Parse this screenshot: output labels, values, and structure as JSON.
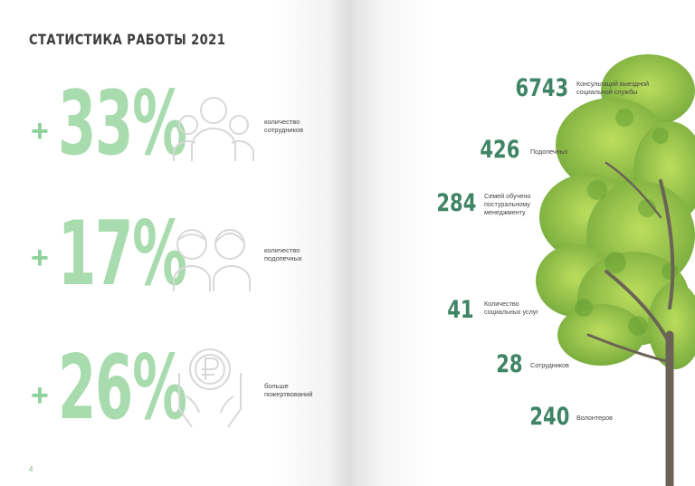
{
  "title": "СТАТИСТИКА РАБОТЫ 2021",
  "page_number": "4",
  "left_stats": [
    {
      "sign": "+",
      "value": "33%",
      "label": "количество сотрудников",
      "icon": "people-group-icon"
    },
    {
      "sign": "+",
      "value": "17%",
      "label": "количество подопечных",
      "icon": "children-icon"
    },
    {
      "sign": "+",
      "value": "26%",
      "label": "больше пожертвований",
      "icon": "ruble-coin-hand-icon"
    }
  ],
  "right_stats": [
    {
      "value": "6743",
      "label": "Консультаций выездной социальной службы"
    },
    {
      "value": "426",
      "label": "Подопечных"
    },
    {
      "value": "284",
      "label": "Семей обучено постуральному менеджменту"
    },
    {
      "value": "41",
      "label": "Количество социальных услуг"
    },
    {
      "value": "28",
      "label": "Сотрудников"
    },
    {
      "value": "240",
      "label": "Волонтеров"
    }
  ],
  "colors": {
    "light_green": "#a8dbae",
    "dark_green": "#3f8466",
    "text": "#444444"
  }
}
